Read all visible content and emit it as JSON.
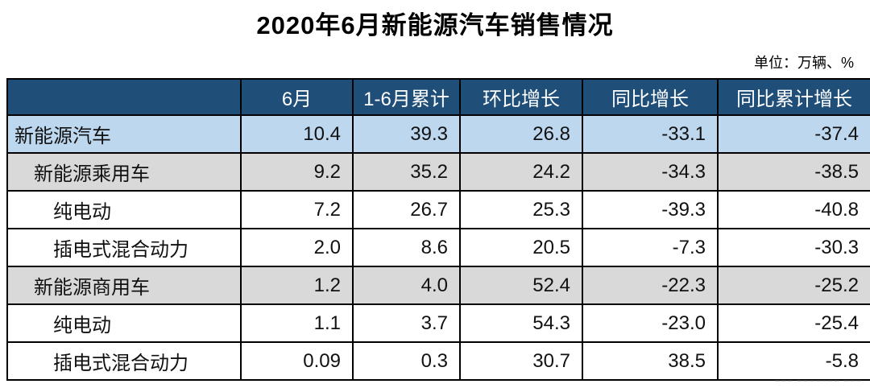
{
  "title": "2020年6月新能源汽车销售情况",
  "unit_note": "单位：万辆、%",
  "watermark": {
    "text": "­––– ––––––– ––– –––"
  },
  "colors": {
    "header_bg": "#1F4E78",
    "header_text": "#FFFFFF",
    "highlight_row_bg": "#BDD7EE",
    "subtotal_row_bg": "#D9D9D9",
    "row_bg": "#FFFFFF",
    "border": "#000000"
  },
  "chart_data": {
    "type": "table",
    "title": "2020年6月新能源汽车销售情况",
    "unit": "万辆、%",
    "columns": [
      "",
      "6月",
      "1-6月累计",
      "环比增长",
      "同比增长",
      "同比累计增长"
    ],
    "rows": [
      {
        "label": "新能源汽车",
        "indent": 0,
        "style": "highlight",
        "values": [
          "10.4",
          "39.3",
          "26.8",
          "-33.1",
          "-37.4"
        ]
      },
      {
        "label": "新能源乘用车",
        "indent": 1,
        "style": "subtotal",
        "values": [
          "9.2",
          "35.2",
          "24.2",
          "-34.3",
          "-38.5"
        ]
      },
      {
        "label": "纯电动",
        "indent": 2,
        "style": "plain",
        "values": [
          "7.2",
          "26.7",
          "25.3",
          "-39.3",
          "-40.8"
        ]
      },
      {
        "label": "插电式混合动力",
        "indent": 2,
        "style": "plain",
        "values": [
          "2.0",
          "8.6",
          "20.5",
          "-7.3",
          "-30.3"
        ]
      },
      {
        "label": "新能源商用车",
        "indent": 1,
        "style": "subtotal",
        "values": [
          "1.2",
          "4.0",
          "52.4",
          "-22.3",
          "-25.2"
        ]
      },
      {
        "label": "纯电动",
        "indent": 2,
        "style": "plain",
        "values": [
          "1.1",
          "3.7",
          "54.3",
          "-23.0",
          "-25.4"
        ]
      },
      {
        "label": "插电式混合动力",
        "indent": 2,
        "style": "plain",
        "values": [
          "0.09",
          "0.3",
          "30.7",
          "38.5",
          "-5.8"
        ]
      }
    ]
  }
}
